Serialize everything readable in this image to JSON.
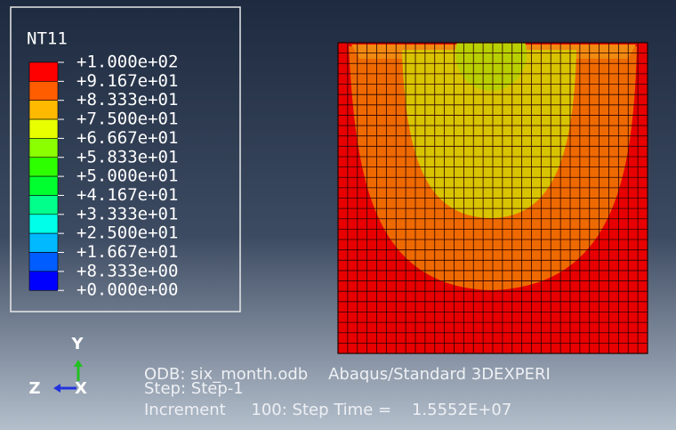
{
  "legend": {
    "title": "NT11",
    "labels": [
      "+1.000e+02",
      "+9.167e+01",
      "+8.333e+01",
      "+7.500e+01",
      "+6.667e+01",
      "+5.833e+01",
      "+5.000e+01",
      "+4.167e+01",
      "+3.333e+01",
      "+2.500e+01",
      "+1.667e+01",
      "+8.333e+00",
      "+0.000e+00"
    ],
    "colors": [
      "#ff0000",
      "#ff5d00",
      "#ffb900",
      "#e8ff00",
      "#8bff00",
      "#2eff00",
      "#00ff2e",
      "#00ff8b",
      "#00ffe8",
      "#00b9ff",
      "#005dff",
      "#0000ff"
    ]
  },
  "triad": {
    "y": "Y",
    "z": "Z",
    "x": "X"
  },
  "info": {
    "line1": "ODB: six_month.odb    Abaqus/Standard 3DEXPERI",
    "line2": "Step: Step-1",
    "line3": "Increment     100: Step Time =    1.5552E+07"
  }
}
